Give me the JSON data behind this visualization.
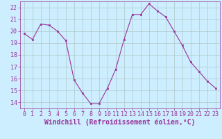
{
  "x": [
    0,
    1,
    2,
    3,
    4,
    5,
    6,
    7,
    8,
    9,
    10,
    11,
    12,
    13,
    14,
    15,
    16,
    17,
    18,
    19,
    20,
    21,
    22,
    23
  ],
  "y": [
    19.8,
    19.3,
    20.6,
    20.5,
    20.0,
    19.2,
    15.9,
    14.8,
    13.9,
    13.9,
    15.2,
    16.8,
    19.3,
    21.4,
    21.4,
    22.3,
    21.7,
    21.2,
    20.0,
    18.8,
    17.4,
    16.6,
    15.8,
    15.2
  ],
  "line_color": "#993399",
  "marker_color": "#993399",
  "bg_color": "#cceeff",
  "grid_color": "#b0c8c8",
  "xlabel": "Windchill (Refroidissement éolien,°C)",
  "ylabel": "",
  "ylim": [
    13.5,
    22.5
  ],
  "xlim": [
    -0.5,
    23.5
  ],
  "yticks": [
    14,
    15,
    16,
    17,
    18,
    19,
    20,
    21,
    22
  ],
  "xticks": [
    0,
    1,
    2,
    3,
    4,
    5,
    6,
    7,
    8,
    9,
    10,
    11,
    12,
    13,
    14,
    15,
    16,
    17,
    18,
    19,
    20,
    21,
    22,
    23
  ],
  "tick_label_fontsize": 6.0,
  "xlabel_fontsize": 7.0,
  "axis_color": "#993399",
  "spine_color": "#993399",
  "linewidth": 0.8,
  "markersize": 2.0
}
